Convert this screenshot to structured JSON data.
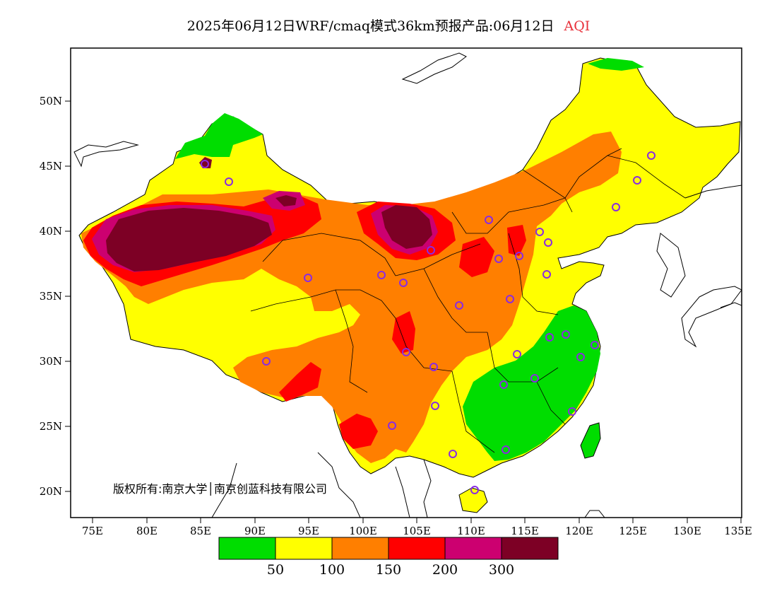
{
  "title": {
    "text": "2025年06月12日WRF/cmaq模式36km预报产品:06月12日",
    "variable": "AQI",
    "variable_color": "#e8303a"
  },
  "map": {
    "lat_labels": [
      "50N",
      "45N",
      "40N",
      "35N",
      "30N",
      "25N",
      "20N"
    ],
    "lon_labels": [
      "75E",
      "80E",
      "85E",
      "90E",
      "95E",
      "100E",
      "105E",
      "110E",
      "115E",
      "120E",
      "125E",
      "130E",
      "135E"
    ],
    "copyright": "版权所有:南京大学│南京创蓝科技有限公司"
  },
  "legend": {
    "colors": [
      "#00dd00",
      "#ffff00",
      "#ff7f00",
      "#ff0000",
      "#cc0070",
      "#7d0025"
    ],
    "labels": [
      "50",
      "100",
      "150",
      "200",
      "300"
    ]
  },
  "colors": {
    "good": "#00dd00",
    "moderate": "#ffff00",
    "sensitive": "#ff7f00",
    "unhealthy": "#ff0000",
    "very_unhealthy": "#cc0070",
    "hazardous": "#7d0025",
    "station_marker": "#8a2be2"
  }
}
